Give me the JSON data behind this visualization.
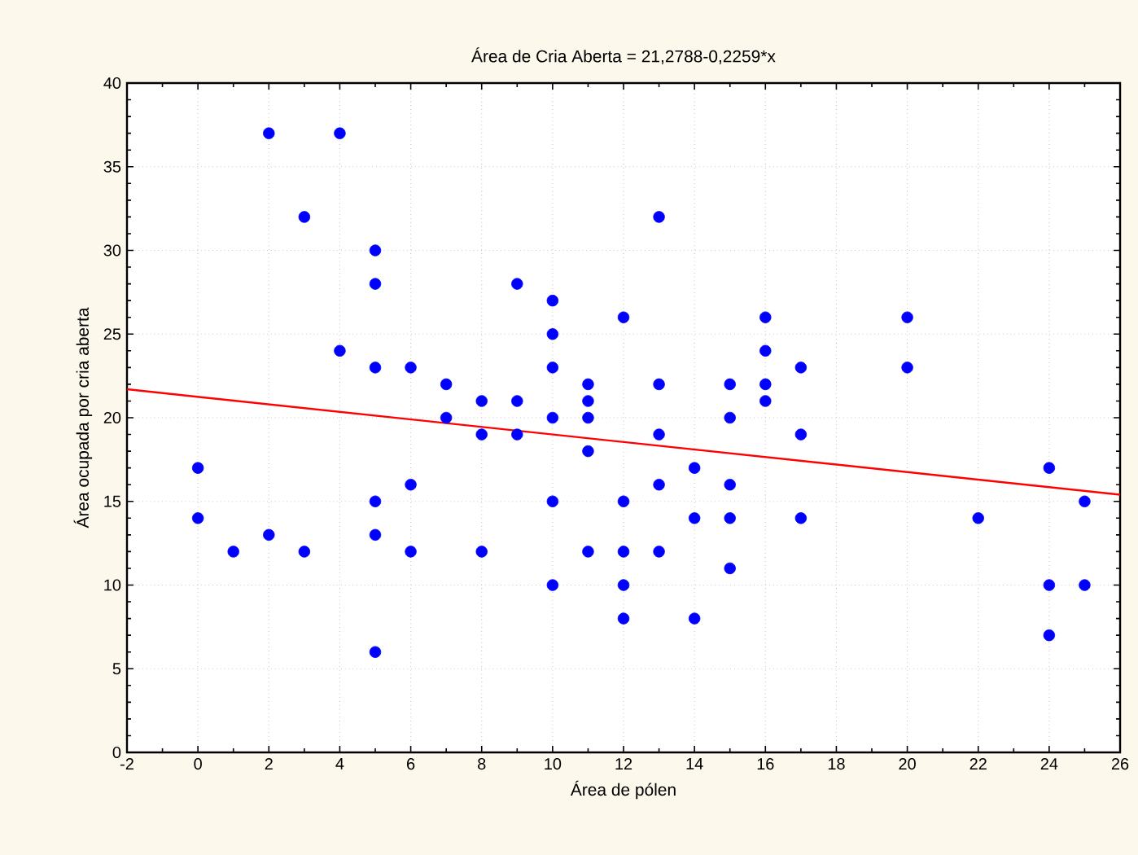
{
  "chart_data": {
    "type": "scatter",
    "title": "Área de Cria Aberta = 21,2788-0,2259*x",
    "xlabel": "Área de pólen",
    "ylabel": "Área ocupada por cria aberta",
    "series": [
      {
        "color": "#0000ff",
        "marker": "circle",
        "x": [
          0,
          0,
          1,
          2,
          2,
          3,
          3,
          4,
          4,
          5,
          5,
          5,
          5,
          5,
          5,
          6,
          6,
          6,
          7,
          7,
          8,
          8,
          8,
          9,
          9,
          9,
          10,
          10,
          10,
          10,
          10,
          10,
          11,
          11,
          11,
          11,
          11,
          12,
          12,
          12,
          12,
          12,
          13,
          13,
          13,
          13,
          13,
          14,
          14,
          14,
          15,
          15,
          15,
          15,
          15,
          16,
          16,
          16,
          16,
          17,
          17,
          17,
          20,
          20,
          22,
          24,
          24,
          24,
          25,
          25
        ],
        "values": [
          17,
          14,
          12,
          37,
          13,
          32,
          12,
          37,
          24,
          30,
          28,
          23,
          15,
          13,
          6,
          23,
          16,
          12,
          22,
          20,
          21,
          19,
          12,
          28,
          21,
          19,
          27,
          25,
          23,
          20,
          15,
          10,
          22,
          21,
          20,
          18,
          12,
          26,
          15,
          12,
          10,
          8,
          32,
          22,
          19,
          16,
          12,
          17,
          14,
          8,
          22,
          20,
          16,
          14,
          11,
          26,
          24,
          22,
          21,
          23,
          19,
          14,
          26,
          23,
          14,
          17,
          10,
          7,
          15,
          10
        ]
      },
      {
        "type": "line",
        "color": "#ff0000",
        "marker": "none",
        "line_style": "solid",
        "x": [
          -2,
          26
        ],
        "values": [
          21.7,
          15.4
        ]
      }
    ],
    "xlim": [
      -2,
      26
    ],
    "xticks": [
      -2,
      0,
      2,
      4,
      6,
      8,
      10,
      12,
      14,
      16,
      18,
      20,
      22,
      24,
      26
    ],
    "ylim": [
      0,
      40
    ],
    "yticks": [
      0,
      5,
      10,
      15,
      20,
      25,
      30,
      35,
      40
    ],
    "grid": true
  }
}
